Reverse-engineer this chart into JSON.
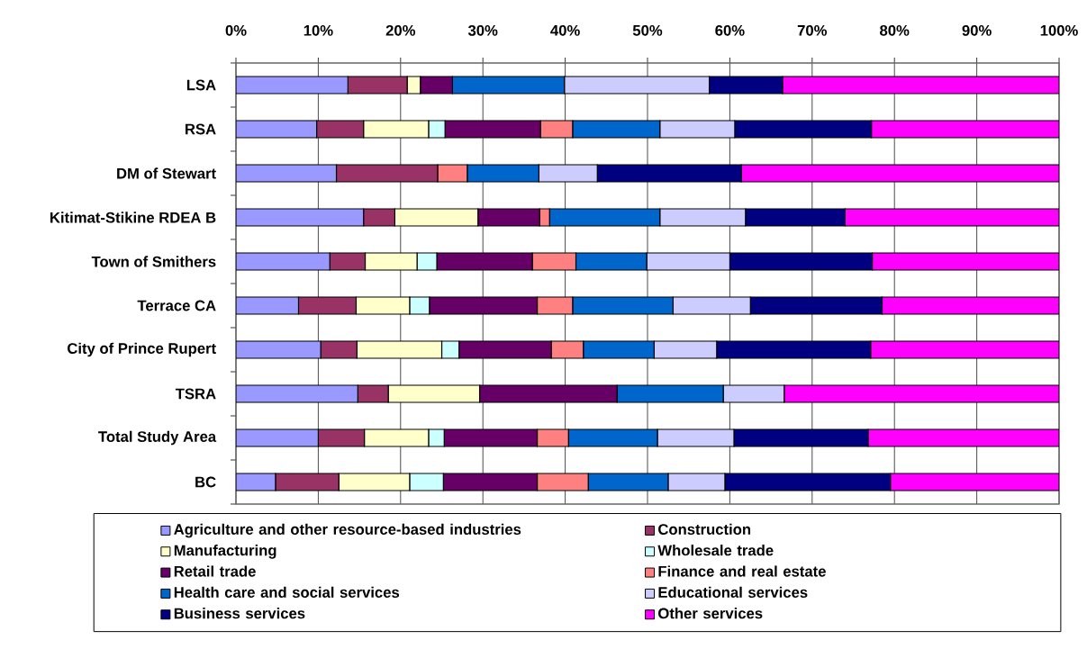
{
  "chart_data": {
    "type": "bar",
    "orientation": "horizontal",
    "stacked": true,
    "categories": [
      "LSA",
      "RSA",
      "DM of Stewart",
      "Kitimat-Stikine RDEA B",
      "Town of Smithers",
      "Terrace CA",
      "City of Prince Rupert",
      "TSRA",
      "Total Study Area",
      "BC"
    ],
    "series": [
      {
        "name": "Agriculture and other resource-based industries",
        "color": "#9999ff",
        "values": [
          13.6,
          9.8,
          12.2,
          15.5,
          11.4,
          7.6,
          10.3,
          14.8,
          10.0,
          4.8
        ]
      },
      {
        "name": "Construction",
        "color": "#993366",
        "values": [
          7.2,
          5.7,
          12.3,
          3.8,
          4.3,
          7.0,
          4.4,
          3.7,
          5.6,
          7.7
        ]
      },
      {
        "name": "Manufacturing",
        "color": "#ffffcc",
        "values": [
          1.6,
          7.9,
          0,
          10.1,
          6.3,
          6.5,
          10.3,
          11.1,
          7.8,
          8.6
        ]
      },
      {
        "name": "Wholesale trade",
        "color": "#ccffff",
        "values": [
          0,
          2.0,
          0,
          0,
          2.4,
          2.4,
          2.1,
          0,
          1.9,
          4.1
        ]
      },
      {
        "name": "Retail trade",
        "color": "#660066",
        "values": [
          3.9,
          11.6,
          0,
          7.5,
          11.6,
          13.1,
          11.2,
          16.7,
          11.3,
          11.4
        ]
      },
      {
        "name": "Finance and real estate",
        "color": "#ff8080",
        "values": [
          0,
          3.9,
          3.6,
          1.2,
          5.3,
          4.3,
          3.9,
          0,
          3.8,
          6.2
        ]
      },
      {
        "name": "Health care and social services",
        "color": "#0066cc",
        "values": [
          13.6,
          10.6,
          8.7,
          13.4,
          8.6,
          12.2,
          8.6,
          12.9,
          10.8,
          9.7
        ]
      },
      {
        "name": "Educational services",
        "color": "#ccccff",
        "values": [
          17.6,
          9.1,
          7.1,
          10.4,
          10.1,
          9.4,
          7.6,
          7.4,
          9.3,
          6.9
        ]
      },
      {
        "name": "Business services",
        "color": "#000080",
        "values": [
          8.9,
          16.6,
          17.5,
          12.1,
          17.3,
          16.0,
          18.7,
          0,
          16.3,
          20.1
        ]
      },
      {
        "name": "Other services",
        "color": "#ff00ff",
        "values": [
          33.6,
          22.8,
          38.6,
          26.0,
          22.7,
          21.5,
          22.9,
          33.4,
          23.2,
          20.5
        ]
      }
    ],
    "xlim": [
      0,
      100
    ],
    "xticks": [
      {
        "value": 0,
        "label": "0%"
      },
      {
        "value": 10,
        "label": "10%"
      },
      {
        "value": 20,
        "label": "20%"
      },
      {
        "value": 30,
        "label": "30%"
      },
      {
        "value": 40,
        "label": "40%"
      },
      {
        "value": 50,
        "label": "50%"
      },
      {
        "value": 60,
        "label": "60%"
      },
      {
        "value": 70,
        "label": "70%"
      },
      {
        "value": 80,
        "label": "80%"
      },
      {
        "value": 90,
        "label": "90%"
      },
      {
        "value": 100,
        "label": "100%"
      }
    ],
    "grid": "x",
    "legend": "bottom"
  }
}
